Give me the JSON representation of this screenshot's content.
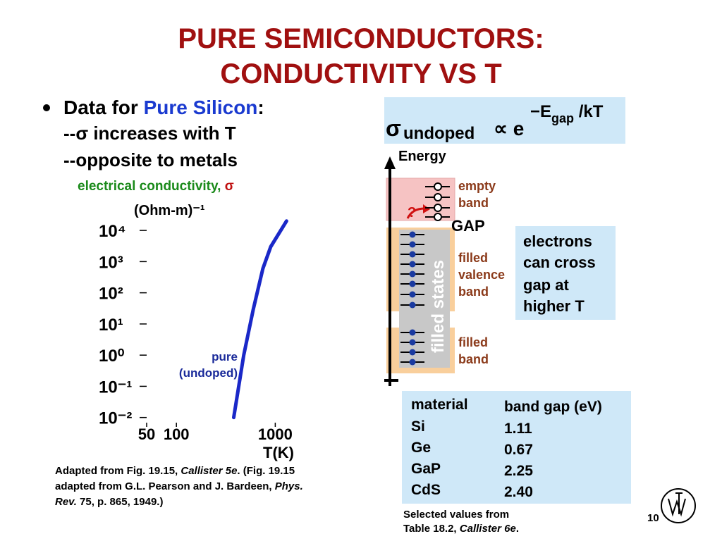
{
  "title": {
    "line1": "PURE SEMICONDUCTORS:",
    "line2": "CONDUCTIVITY VS T"
  },
  "bullet": {
    "lead": "Data for ",
    "highlight": "Pure Silicon",
    "end": ":",
    "points": [
      "--σ increases with T",
      "--opposite to metals"
    ]
  },
  "chart_data": {
    "type": "line",
    "title": "electrical conductivity, ",
    "title_symbol": "σ",
    "ylabel": "(Ohm-m)⁻¹",
    "xlabel": "T(K)",
    "x": [
      380,
      480,
      600,
      750,
      900,
      1300
    ],
    "series": [
      {
        "color": "#1a28c8",
        "values": [
          0.01,
          1,
          30,
          600,
          3000,
          20000
        ]
      }
    ],
    "annotation": [
      "pure",
      "(undoped)"
    ],
    "xscale": "log",
    "yscale": "log",
    "xlim": [
      50,
      1600
    ],
    "ylim": [
      0.005,
      30000
    ],
    "xticks": [
      50,
      100,
      1000
    ],
    "yticks": [
      {
        "value": 10000,
        "label": "10⁴"
      },
      {
        "value": 1000,
        "label": "10³"
      },
      {
        "value": 100,
        "label": "10²"
      },
      {
        "value": 10,
        "label": "10¹"
      },
      {
        "value": 1,
        "label": "10⁰"
      },
      {
        "value": 0.1,
        "label": "10⁻¹"
      },
      {
        "value": 0.01,
        "label": "10⁻²"
      }
    ]
  },
  "equation": {
    "sigma": "σ",
    "subscript": "undoped",
    "prop": "∝ e",
    "exp": "−E",
    "exp_sub": "gap",
    "exp_end": " /kT"
  },
  "diagram": {
    "axis": "Energy",
    "empty": [
      "empty",
      "band"
    ],
    "question": "?",
    "gap": "GAP",
    "valence": [
      "filled",
      "valence",
      "band"
    ],
    "filled": [
      "filled",
      "band"
    ],
    "states": "filled states"
  },
  "electrons_box": [
    "electrons",
    "can cross",
    "gap at",
    "higher T"
  ],
  "table": {
    "header": [
      "material",
      "band gap (eV)"
    ],
    "rows": [
      [
        "Si",
        "1.11"
      ],
      [
        "Ge",
        "0.67"
      ],
      [
        "GaP",
        "2.25"
      ],
      [
        "CdS",
        "2.40"
      ]
    ]
  },
  "table_source": {
    "line1": "Selected values from",
    "line2": "Table 18.2, ",
    "italic": "Callister 6e",
    "end": "."
  },
  "citation": {
    "p1": "Adapted from Fig. 19.15, ",
    "i1": "Callister 5e",
    "p2": ".  (Fig. 19.15",
    "p3": "adapted from G.L. Pearson and J. Bardeen, ",
    "i2": "Phys.",
    "i3": "Rev. ",
    "b1": "75",
    "p4": ", p. 865, 1949.)"
  },
  "page_number": "10"
}
